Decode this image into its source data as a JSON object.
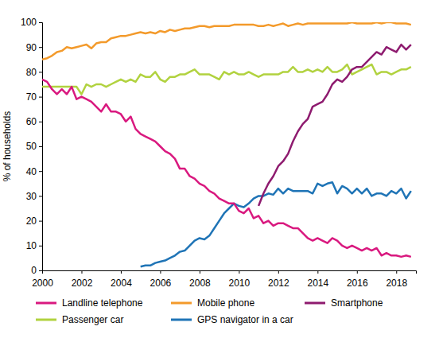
{
  "chart_data": {
    "type": "line",
    "y_label": "% of households",
    "x": [
      2000,
      2000.25,
      2000.5,
      2000.75,
      2001,
      2001.25,
      2001.5,
      2001.75,
      2002,
      2002.25,
      2002.5,
      2002.75,
      2003,
      2003.25,
      2003.5,
      2003.75,
      2004,
      2004.25,
      2004.5,
      2004.75,
      2005,
      2005.25,
      2005.5,
      2005.75,
      2006,
      2006.25,
      2006.5,
      2006.75,
      2007,
      2007.25,
      2007.5,
      2007.75,
      2008,
      2008.25,
      2008.5,
      2008.75,
      2009,
      2009.25,
      2009.5,
      2009.75,
      2010,
      2010.25,
      2010.5,
      2010.75,
      2011,
      2011.25,
      2011.5,
      2011.75,
      2012,
      2012.25,
      2012.5,
      2012.75,
      2013,
      2013.25,
      2013.5,
      2013.75,
      2014,
      2014.25,
      2014.5,
      2014.75,
      2015,
      2015.25,
      2015.5,
      2015.75,
      2016,
      2016.25,
      2016.5,
      2016.75,
      2017,
      2017.25,
      2017.5,
      2017.75,
      2018,
      2018.25,
      2018.5,
      2018.75
    ],
    "series": [
      {
        "name": "Landline telephone",
        "color": "#d9197f",
        "values": [
          77,
          76,
          73,
          71,
          73,
          71,
          74,
          69,
          70,
          69,
          68,
          66,
          64,
          67,
          64,
          64,
          63,
          60,
          62,
          57,
          55,
          54,
          53,
          52,
          50,
          48,
          47,
          45,
          41,
          41,
          38,
          37,
          35,
          34,
          32,
          31,
          29,
          28,
          27,
          27,
          24,
          23,
          25,
          21,
          22,
          19,
          20,
          18,
          19,
          19,
          18,
          17,
          17,
          15,
          13,
          12,
          13,
          12,
          11,
          13,
          12,
          10,
          9,
          10,
          9,
          8,
          9,
          8,
          9,
          6,
          7,
          6,
          6,
          5.5,
          6,
          5.5
        ]
      },
      {
        "name": "Mobile phone",
        "color": "#f39a2b",
        "values": [
          85,
          85.5,
          86.5,
          88,
          88.5,
          90,
          89.5,
          90,
          90.5,
          91,
          89.5,
          91.5,
          92,
          92,
          93.5,
          94,
          94.5,
          94.5,
          95,
          95.5,
          96,
          95.5,
          96,
          95.5,
          96.5,
          96,
          97,
          96.5,
          97,
          97.5,
          97.5,
          98,
          98.5,
          98.5,
          98,
          98.5,
          98.5,
          98.5,
          98.5,
          99,
          99,
          99,
          99,
          99,
          98.5,
          98.5,
          99,
          98.5,
          99,
          99.5,
          98.5,
          99,
          99.5,
          99,
          99.5,
          99.5,
          99.5,
          99.5,
          99.5,
          99.5,
          99.5,
          99.5,
          99.5,
          100,
          99.5,
          99.5,
          99.5,
          99.5,
          100,
          99.5,
          100,
          100,
          99.5,
          99.5,
          99.5,
          99
        ]
      },
      {
        "name": "Smartphone",
        "color": "#8e1b6f",
        "values": [
          null,
          null,
          null,
          null,
          null,
          null,
          null,
          null,
          null,
          null,
          null,
          null,
          null,
          null,
          null,
          null,
          null,
          null,
          null,
          null,
          null,
          null,
          null,
          null,
          null,
          null,
          null,
          null,
          null,
          null,
          null,
          null,
          null,
          null,
          null,
          null,
          null,
          null,
          null,
          null,
          null,
          null,
          null,
          null,
          26,
          31,
          35,
          38,
          42,
          44,
          47,
          52,
          56,
          59,
          61,
          66,
          67,
          68,
          71,
          75,
          77,
          76,
          78,
          81,
          82,
          82,
          84,
          86,
          88,
          87,
          90,
          89,
          88,
          91,
          89,
          91
        ]
      },
      {
        "name": "Passenger car",
        "color": "#b1d23f",
        "values": [
          74,
          74,
          74,
          74,
          74,
          74,
          74,
          74,
          71,
          75,
          74,
          75,
          75,
          74,
          75,
          76,
          77,
          76,
          77,
          76,
          79,
          78,
          78,
          80,
          77,
          76,
          78,
          78,
          79,
          79,
          80,
          81,
          79,
          79,
          79,
          78,
          77,
          80,
          79,
          80,
          79,
          79,
          80,
          79,
          78,
          79,
          79,
          79,
          79,
          80,
          80,
          82,
          80,
          80,
          81,
          80,
          81,
          80,
          82,
          80,
          80,
          81,
          83,
          79,
          80,
          81,
          82,
          83,
          79,
          80,
          80,
          79,
          80,
          81,
          81,
          82
        ]
      },
      {
        "name": "GPS navigator in a car",
        "color": "#1f74b6",
        "values": [
          null,
          null,
          null,
          null,
          null,
          null,
          null,
          null,
          null,
          null,
          null,
          null,
          null,
          null,
          null,
          null,
          null,
          null,
          null,
          null,
          1.5,
          2,
          2,
          3,
          3.5,
          4,
          5,
          6,
          7.5,
          8,
          10,
          12,
          13,
          12.5,
          14,
          17,
          20,
          23,
          25,
          27,
          26,
          25.5,
          27,
          29,
          30,
          30,
          31,
          30.5,
          33,
          31,
          33,
          32,
          32,
          32,
          32,
          31,
          35,
          34,
          35,
          35.5,
          31,
          34,
          33,
          31,
          33,
          31,
          33,
          30,
          31,
          31,
          30,
          32,
          31,
          33,
          29,
          32
        ]
      }
    ],
    "xlim": [
      2000,
      2019
    ],
    "xticks": [
      2000,
      2002,
      2004,
      2006,
      2008,
      2010,
      2012,
      2014,
      2016,
      2018
    ],
    "ylim": [
      0,
      100
    ],
    "yticks": [
      0,
      10,
      20,
      30,
      40,
      50,
      60,
      70,
      80,
      90,
      100
    ],
    "grid": false,
    "legend": "bottom"
  }
}
